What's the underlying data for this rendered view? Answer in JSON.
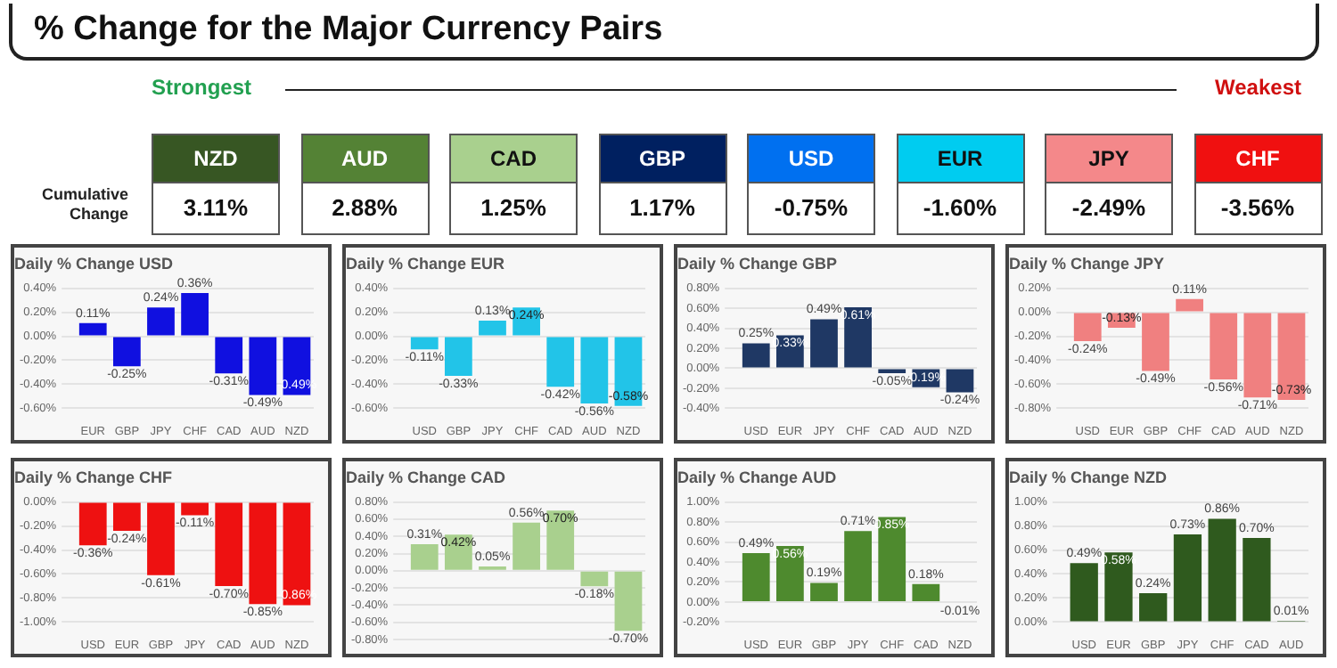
{
  "chart_data": [
    {
      "type": "other",
      "title": "% Change for the Major Currency Pairs",
      "ylabel": "Cumulative Change",
      "annotations": [
        "Strongest",
        "Weakest"
      ],
      "categories": [
        "NZD",
        "AUD",
        "CAD",
        "GBP",
        "USD",
        "EUR",
        "JPY",
        "CHF"
      ],
      "value_labels": [
        "3.11%",
        "2.88%",
        "1.25%",
        "1.17%",
        "-0.75%",
        "-1.60%",
        "-2.49%",
        "-3.56%"
      ],
      "colors": [
        "#375623",
        "#548235",
        "#a9d08e",
        "#002060",
        "#0070f0",
        "#00ccf0",
        "#f4888a",
        "#f01010"
      ]
    },
    {
      "type": "bar",
      "title": "Daily % Change USD",
      "categories": [
        "EUR",
        "GBP",
        "JPY",
        "CHF",
        "CAD",
        "AUD",
        "NZD"
      ],
      "values": [
        0.11,
        -0.25,
        0.24,
        0.36,
        -0.31,
        -0.49,
        -0.49
      ],
      "value_labels": [
        "0.11%",
        "-0.25%",
        "0.24%",
        "0.36%",
        "-0.31%",
        "-0.49%",
        "-0.49%"
      ],
      "color": "#1010e0",
      "ylim": [
        -0.6,
        0.4
      ],
      "yticks": [
        {
          "value": -0.6,
          "label": "-0.60%"
        },
        {
          "value": -0.4,
          "label": "-0.40%"
        },
        {
          "value": -0.2,
          "label": "-0.20%"
        },
        {
          "value": 0,
          "label": "0.00%"
        },
        {
          "value": 0.2,
          "label": "0.20%"
        },
        {
          "value": 0.4,
          "label": "0.40%"
        }
      ],
      "grid": "y"
    },
    {
      "type": "bar",
      "title": "Daily % Change EUR",
      "categories": [
        "USD",
        "GBP",
        "JPY",
        "CHF",
        "CAD",
        "AUD",
        "NZD"
      ],
      "values": [
        -0.11,
        -0.33,
        0.13,
        0.24,
        -0.42,
        -0.56,
        -0.58
      ],
      "value_labels": [
        "-0.11%",
        "-0.33%",
        "0.13%",
        "0.24%",
        "-0.42%",
        "-0.56%",
        "-0.58%"
      ],
      "color": "#22c4e8",
      "ylim": [
        -0.6,
        0.4
      ],
      "yticks": [
        {
          "value": -0.6,
          "label": "-0.60%"
        },
        {
          "value": -0.4,
          "label": "-0.40%"
        },
        {
          "value": -0.2,
          "label": "-0.20%"
        },
        {
          "value": 0,
          "label": "0.00%"
        },
        {
          "value": 0.2,
          "label": "0.20%"
        },
        {
          "value": 0.4,
          "label": "0.40%"
        }
      ],
      "grid": "y"
    },
    {
      "type": "bar",
      "title": "Daily % Change GBP",
      "categories": [
        "USD",
        "EUR",
        "JPY",
        "CHF",
        "CAD",
        "AUD",
        "NZD"
      ],
      "values": [
        0.25,
        0.33,
        0.49,
        0.61,
        -0.05,
        -0.19,
        -0.24
      ],
      "value_labels": [
        "0.25%",
        "0.33%",
        "0.49%",
        "0.61%",
        "-0.05%",
        "-0.19%",
        "-0.24%"
      ],
      "color": "#1f3864",
      "ylim": [
        -0.4,
        0.8
      ],
      "yticks": [
        {
          "value": -0.4,
          "label": "-0.40%"
        },
        {
          "value": -0.2,
          "label": "-0.20%"
        },
        {
          "value": 0,
          "label": "0.00%"
        },
        {
          "value": 0.2,
          "label": "0.20%"
        },
        {
          "value": 0.4,
          "label": "0.40%"
        },
        {
          "value": 0.6,
          "label": "0.60%"
        },
        {
          "value": 0.8,
          "label": "0.80%"
        }
      ],
      "grid": "y"
    },
    {
      "type": "bar",
      "title": "Daily % Change JPY",
      "categories": [
        "USD",
        "EUR",
        "GBP",
        "CHF",
        "CAD",
        "AUD",
        "NZD"
      ],
      "values": [
        -0.24,
        -0.13,
        -0.49,
        0.11,
        -0.56,
        -0.71,
        -0.73
      ],
      "value_labels": [
        "-0.24%",
        "-0.13%",
        "-0.49%",
        "0.11%",
        "-0.56%",
        "-0.71%",
        "-0.73%"
      ],
      "color": "#f08080",
      "ylim": [
        -0.8,
        0.2
      ],
      "yticks": [
        {
          "value": -0.8,
          "label": "-0.80%"
        },
        {
          "value": -0.6,
          "label": "-0.60%"
        },
        {
          "value": -0.4,
          "label": "-0.40%"
        },
        {
          "value": -0.2,
          "label": "-0.20%"
        },
        {
          "value": 0,
          "label": "0.00%"
        },
        {
          "value": 0.2,
          "label": "0.20%"
        }
      ],
      "grid": "y"
    },
    {
      "type": "bar",
      "title": "Daily % Change CHF",
      "categories": [
        "USD",
        "EUR",
        "GBP",
        "JPY",
        "CAD",
        "AUD",
        "NZD"
      ],
      "values": [
        -0.36,
        -0.24,
        -0.61,
        -0.11,
        -0.7,
        -0.85,
        -0.86
      ],
      "value_labels": [
        "-0.36%",
        "-0.24%",
        "-0.61%",
        "-0.11%",
        "-0.70%",
        "-0.85%",
        "-0.86%"
      ],
      "color": "#ee1111",
      "ylim": [
        -1.0,
        0
      ],
      "yticks": [
        {
          "value": -1.0,
          "label": "-1.00%"
        },
        {
          "value": -0.8,
          "label": "-0.80%"
        },
        {
          "value": -0.6,
          "label": "-0.60%"
        },
        {
          "value": -0.4,
          "label": "-0.40%"
        },
        {
          "value": -0.2,
          "label": "-0.20%"
        },
        {
          "value": 0,
          "label": "0.00%"
        }
      ],
      "grid": "y"
    },
    {
      "type": "bar",
      "title": "Daily % Change CAD",
      "categories": [
        null,
        null,
        null,
        null,
        null,
        null,
        null
      ],
      "values": [
        0.31,
        0.42,
        0.05,
        0.56,
        0.7,
        -0.18,
        -0.7
      ],
      "value_labels": [
        "0.31%",
        "0.42%",
        "0.05%",
        "0.56%",
        "0.70%",
        "-0.18%",
        "-0.70%"
      ],
      "color": "#a9d08e",
      "ylim": [
        -0.8,
        0.8
      ],
      "yticks": [
        {
          "value": -0.8,
          "label": "-0.80%"
        },
        {
          "value": -0.6,
          "label": "-0.60%"
        },
        {
          "value": -0.4,
          "label": "-0.40%"
        },
        {
          "value": -0.2,
          "label": "-0.20%"
        },
        {
          "value": 0,
          "label": "0.00%"
        },
        {
          "value": 0.2,
          "label": "0.20%"
        },
        {
          "value": 0.4,
          "label": "0.40%"
        },
        {
          "value": 0.6,
          "label": "0.60%"
        },
        {
          "value": 0.8,
          "label": "0.80%"
        }
      ],
      "grid": "y",
      "tick_labels": "y"
    },
    {
      "type": "bar",
      "title": "Daily % Change AUD",
      "categories": [
        "USD",
        "EUR",
        "GBP",
        "JPY",
        "CHF",
        "CAD",
        "NZD"
      ],
      "values": [
        0.49,
        0.56,
        0.19,
        0.71,
        0.85,
        0.18,
        -0.01
      ],
      "value_labels": [
        "0.49%",
        "0.56%",
        "0.19%",
        "0.71%",
        "0.85%",
        "0.18%",
        "-0.01%"
      ],
      "color": "#4e8a2e",
      "ylim": [
        -0.2,
        1.0
      ],
      "yticks": [
        {
          "value": -0.2,
          "label": "-0.20%"
        },
        {
          "value": 0,
          "label": "0.00%"
        },
        {
          "value": 0.2,
          "label": "0.20%"
        },
        {
          "value": 0.4,
          "label": "0.40%"
        },
        {
          "value": 0.6,
          "label": "0.60%"
        },
        {
          "value": 0.8,
          "label": "0.80%"
        },
        {
          "value": 1.0,
          "label": "1.00%"
        }
      ],
      "grid": "y"
    },
    {
      "type": "bar",
      "title": "Daily % Change NZD",
      "categories": [
        "USD",
        "EUR",
        "GBP",
        "JPY",
        "CHF",
        "CAD",
        "AUD"
      ],
      "values": [
        0.49,
        0.58,
        0.24,
        0.73,
        0.86,
        0.7,
        0.01
      ],
      "value_labels": [
        "0.49%",
        "0.58%",
        "0.24%",
        "0.73%",
        "0.86%",
        "0.70%",
        "0.01%"
      ],
      "color": "#2f5a1e",
      "ylim": [
        0,
        1.0
      ],
      "yticks": [
        {
          "value": 0,
          "label": "0.00%"
        },
        {
          "value": 0.2,
          "label": "0.20%"
        },
        {
          "value": 0.4,
          "label": "0.40%"
        },
        {
          "value": 0.6,
          "label": "0.60%"
        },
        {
          "value": 0.8,
          "label": "0.80%"
        },
        {
          "value": 1.0,
          "label": "1.00%"
        }
      ],
      "grid": "y"
    }
  ]
}
